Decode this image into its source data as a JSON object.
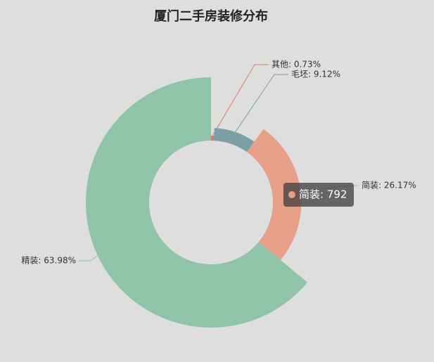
{
  "chart_data": {
    "type": "pie",
    "title": "厦门二手房装修分布",
    "values": [
      0.73,
      9.12,
      26.17,
      63.98
    ],
    "value_labels": [
      "其他: 0.73%",
      "毛坯: 9.12%",
      "简装: 26.17%",
      "精装: 63.98%"
    ],
    "colors": [
      "#e0776b",
      "#7b9fa5",
      "#e89f88",
      "#8fc3aa"
    ],
    "rose": true,
    "tooltip": {
      "index": 2,
      "text": "简装: 792"
    }
  }
}
